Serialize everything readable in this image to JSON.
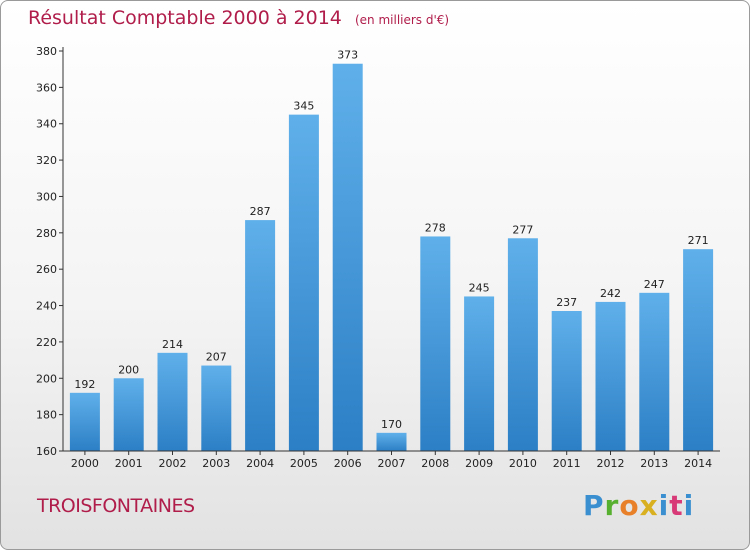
{
  "chart_data": {
    "type": "bar",
    "title": "Résultat Comptable 2000 à 2014",
    "subtitle": "(en milliers d'€)",
    "categories": [
      "2000",
      "2001",
      "2002",
      "2003",
      "2004",
      "2005",
      "2006",
      "2007",
      "2008",
      "2009",
      "2010",
      "2011",
      "2012",
      "2013",
      "2014"
    ],
    "values": [
      192,
      200,
      214,
      207,
      287,
      345,
      373,
      170,
      278,
      245,
      277,
      237,
      242,
      247,
      271
    ],
    "ylim": [
      160,
      380
    ],
    "yticks": [
      160,
      180,
      200,
      220,
      240,
      260,
      280,
      300,
      320,
      340,
      360,
      380
    ],
    "xlabel": "",
    "ylabel": "",
    "grid": false,
    "bar_color_top": "#5fb0ea",
    "bar_color_bottom": "#2c7fc5"
  },
  "footer": {
    "commune": "TROISFONTAINES",
    "logo_text": "Proxiti"
  }
}
